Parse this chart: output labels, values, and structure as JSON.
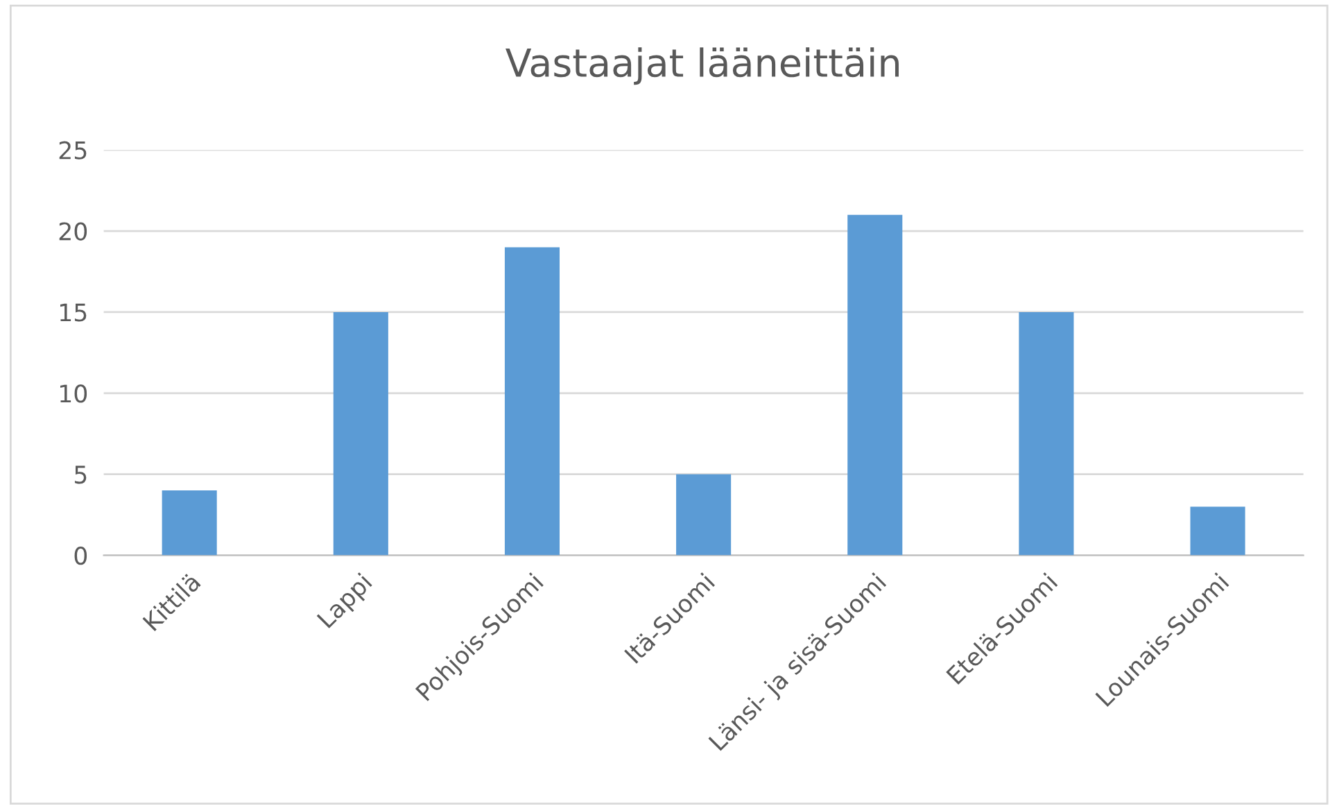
{
  "chart_data": {
    "type": "bar",
    "title": "Vastaajat lääneittäin",
    "categories": [
      "Kittilä",
      "Lappi",
      "Pohjois-Suomi",
      "Itä-Suomi",
      "Länsi- ja sisä-Suomi",
      "Etelä-Suomi",
      "Lounais-Suomi"
    ],
    "values": [
      4,
      15,
      19,
      5,
      21,
      15,
      3
    ],
    "color": "#5b9bd5",
    "ylim": [
      0,
      25
    ],
    "yticks": [
      0,
      5,
      10,
      15,
      20,
      25
    ],
    "grid": "y"
  }
}
